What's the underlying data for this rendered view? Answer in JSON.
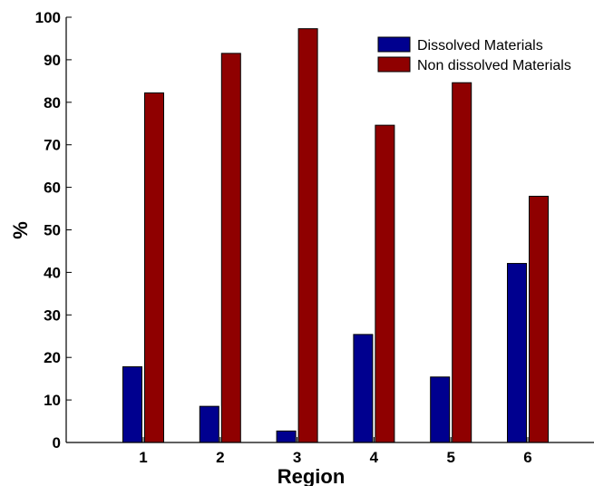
{
  "chart_data": {
    "type": "bar",
    "xlabel": "Region",
    "ylabel": "%",
    "ylim": [
      0,
      100
    ],
    "yticks": [
      0,
      10,
      20,
      30,
      40,
      50,
      60,
      70,
      80,
      90,
      100
    ],
    "categories": [
      "1",
      "2",
      "3",
      "4",
      "5",
      "6"
    ],
    "series": [
      {
        "name": "Dissolved Materials",
        "color": "#00008f",
        "values": [
          17.8,
          8.5,
          2.7,
          25.4,
          15.4,
          42.1
        ]
      },
      {
        "name": "Non dissolved Materials",
        "color": "#8f0000",
        "values": [
          82.2,
          91.5,
          97.3,
          74.6,
          84.6,
          57.9
        ]
      }
    ],
    "legend_position": "top-right",
    "grid": false
  }
}
